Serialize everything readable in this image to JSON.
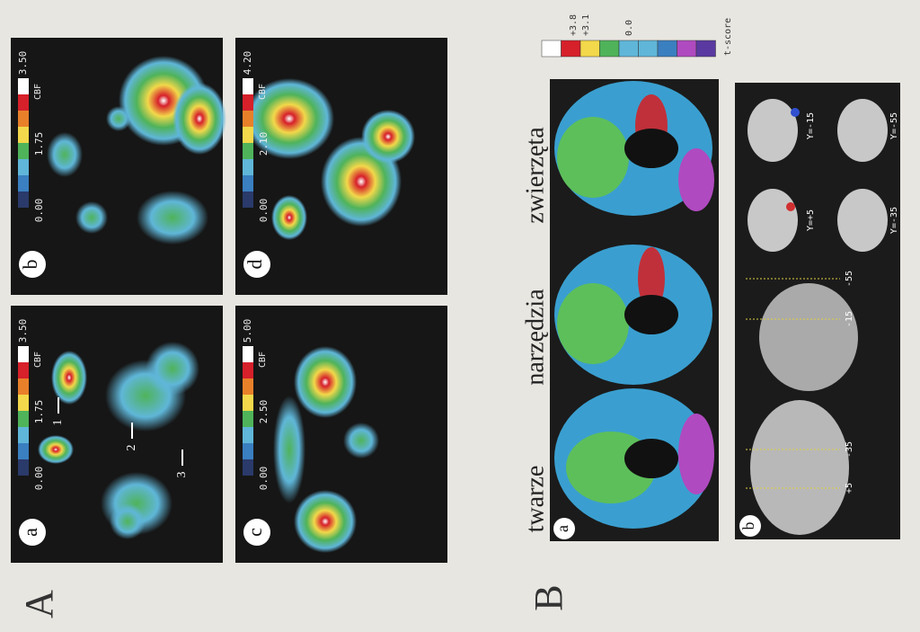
{
  "figure_a": {
    "label": "A",
    "panels": [
      {
        "label": "a",
        "scale": {
          "max": "3.50",
          "mid": "1.75",
          "min": "0.00",
          "unit": "CBF"
        },
        "arrows": [
          "1",
          "2",
          "3"
        ]
      },
      {
        "label": "b",
        "scale": {
          "max": "3.50",
          "mid": "1.75",
          "min": "0.00",
          "unit": "CBF"
        }
      },
      {
        "label": "c",
        "scale": {
          "max": "5.00",
          "mid": "2.50",
          "min": "0.00",
          "unit": "CBF"
        }
      },
      {
        "label": "d",
        "scale": {
          "max": "4.20",
          "mid": "2.10",
          "min": "0.00",
          "unit": "CBF"
        }
      }
    ]
  },
  "figure_b": {
    "label": "B",
    "columns": [
      "twarze",
      "narzędzia",
      "zwierzęta"
    ],
    "scale": {
      "labels": [
        "+3.8",
        "+3.1",
        "0.0"
      ],
      "unit": "t-score"
    },
    "panel_a": {
      "label": "a"
    },
    "panel_b": {
      "label": "b",
      "slices": [
        "Y=+5",
        "Y=-35",
        "Y=-15",
        "Y=-55"
      ],
      "lines": [
        "+5",
        "-35",
        "-15",
        "-55"
      ]
    }
  }
}
